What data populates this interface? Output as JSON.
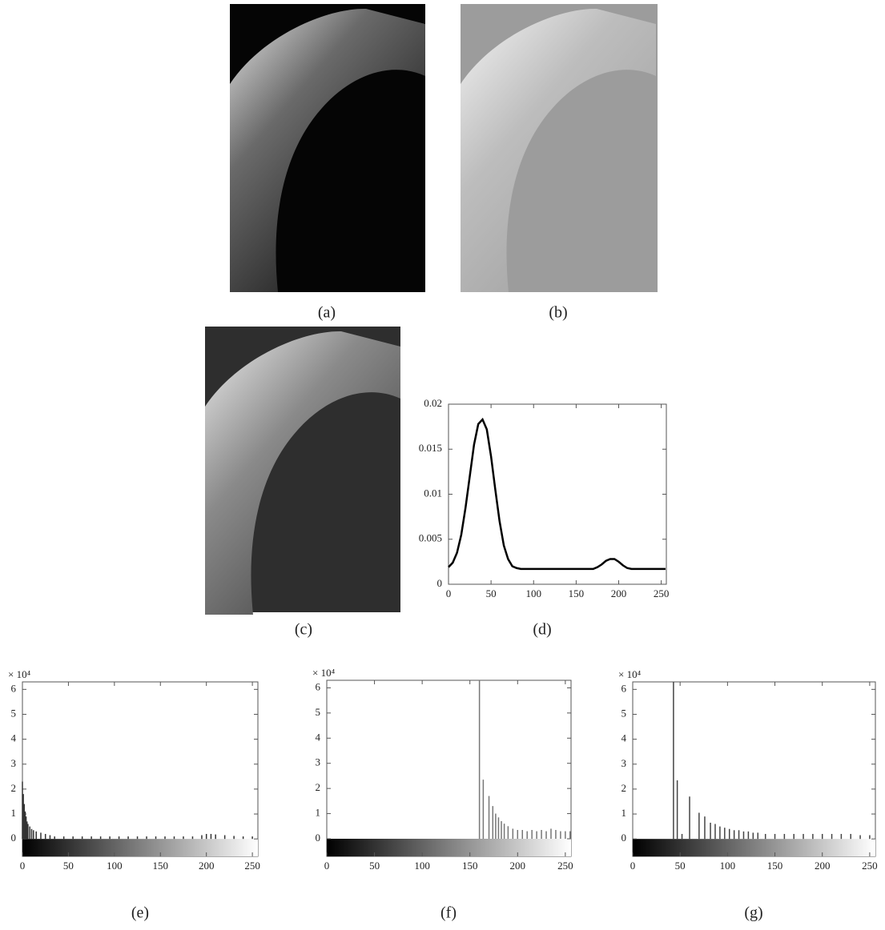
{
  "figures": [
    {
      "caption": "(a)"
    },
    {
      "caption": "(b)"
    },
    {
      "caption": "(c)"
    }
  ],
  "chart_data": [
    {
      "type": "line",
      "caption": "(d)",
      "color": "#000000",
      "x": [
        0,
        5,
        10,
        15,
        20,
        25,
        30,
        35,
        40,
        45,
        50,
        55,
        60,
        65,
        70,
        75,
        80,
        85,
        90,
        100,
        110,
        120,
        130,
        140,
        150,
        160,
        170,
        175,
        180,
        185,
        190,
        195,
        200,
        205,
        210,
        215,
        220,
        230,
        240,
        250,
        255
      ],
      "values": [
        0.0019,
        0.0024,
        0.0035,
        0.0055,
        0.0085,
        0.012,
        0.0155,
        0.0178,
        0.0183,
        0.0172,
        0.0142,
        0.0105,
        0.007,
        0.0043,
        0.0028,
        0.002,
        0.0018,
        0.0017,
        0.0017,
        0.0017,
        0.0017,
        0.0017,
        0.0017,
        0.0017,
        0.0017,
        0.0017,
        0.0017,
        0.0019,
        0.0022,
        0.0026,
        0.0028,
        0.0028,
        0.0025,
        0.0021,
        0.0018,
        0.0017,
        0.0017,
        0.0017,
        0.0017,
        0.0017,
        0.0017
      ],
      "xlim": [
        0,
        256
      ],
      "ylim": [
        0,
        0.02
      ],
      "xticks": [
        0,
        50,
        100,
        150,
        200,
        250
      ],
      "yticks": [
        0,
        0.005,
        0.01,
        0.015,
        0.02
      ]
    },
    {
      "type": "bar",
      "caption": "(e)",
      "y_scale_label": "× 10⁴",
      "color": "#333333",
      "x": [
        0,
        1,
        2,
        3,
        4,
        5,
        6,
        8,
        10,
        12,
        15,
        20,
        25,
        30,
        35,
        45,
        55,
        65,
        75,
        85,
        95,
        105,
        115,
        125,
        135,
        145,
        155,
        165,
        175,
        185,
        195,
        200,
        205,
        210,
        220,
        230,
        240,
        250
      ],
      "values": [
        2.3,
        1.8,
        1.4,
        1.1,
        0.9,
        0.7,
        0.6,
        0.5,
        0.4,
        0.35,
        0.3,
        0.25,
        0.2,
        0.15,
        0.1,
        0.1,
        0.1,
        0.1,
        0.1,
        0.1,
        0.1,
        0.1,
        0.1,
        0.1,
        0.1,
        0.1,
        0.1,
        0.1,
        0.1,
        0.1,
        0.15,
        0.2,
        0.2,
        0.18,
        0.15,
        0.12,
        0.1,
        0.1
      ],
      "xlim": [
        0,
        256
      ],
      "ylim": [
        -0.7,
        6.3
      ],
      "xticks": [
        0,
        50,
        100,
        150,
        200,
        250
      ],
      "yticks": [
        0,
        1,
        2,
        3,
        4,
        5,
        6
      ]
    },
    {
      "type": "bar",
      "caption": "(f)",
      "y_scale_label": "× 10⁴",
      "color": "#777777",
      "x": [
        160,
        164,
        170,
        174,
        177,
        180,
        183,
        186,
        190,
        195,
        200,
        205,
        210,
        215,
        220,
        225,
        230,
        235,
        240,
        245,
        250,
        255
      ],
      "values": [
        6.3,
        2.35,
        1.7,
        1.3,
        1.0,
        0.85,
        0.7,
        0.6,
        0.5,
        0.4,
        0.35,
        0.35,
        0.3,
        0.35,
        0.3,
        0.35,
        0.3,
        0.4,
        0.35,
        0.3,
        0.3,
        0.3
      ],
      "xlim": [
        0,
        256
      ],
      "ylim": [
        -0.7,
        6.3
      ],
      "xticks": [
        0,
        50,
        100,
        150,
        200,
        250
      ],
      "yticks": [
        0,
        1,
        2,
        3,
        4,
        5,
        6
      ]
    },
    {
      "type": "bar",
      "caption": "(g)",
      "y_scale_label": "× 10⁴",
      "color": "#444444",
      "x": [
        43,
        47,
        52,
        60,
        70,
        76,
        82,
        87,
        92,
        97,
        102,
        107,
        112,
        117,
        122,
        127,
        132,
        140,
        150,
        160,
        170,
        180,
        190,
        200,
        210,
        220,
        230,
        240,
        250
      ],
      "values": [
        6.3,
        2.35,
        0.2,
        1.7,
        1.05,
        0.9,
        0.65,
        0.6,
        0.5,
        0.45,
        0.4,
        0.35,
        0.35,
        0.3,
        0.3,
        0.25,
        0.25,
        0.2,
        0.2,
        0.2,
        0.2,
        0.2,
        0.2,
        0.2,
        0.2,
        0.2,
        0.2,
        0.15,
        0.15
      ],
      "xlim": [
        0,
        256
      ],
      "ylim": [
        -0.7,
        6.3
      ],
      "xticks": [
        0,
        50,
        100,
        150,
        200,
        250
      ],
      "yticks": [
        0,
        1,
        2,
        3,
        4,
        5,
        6
      ]
    }
  ]
}
